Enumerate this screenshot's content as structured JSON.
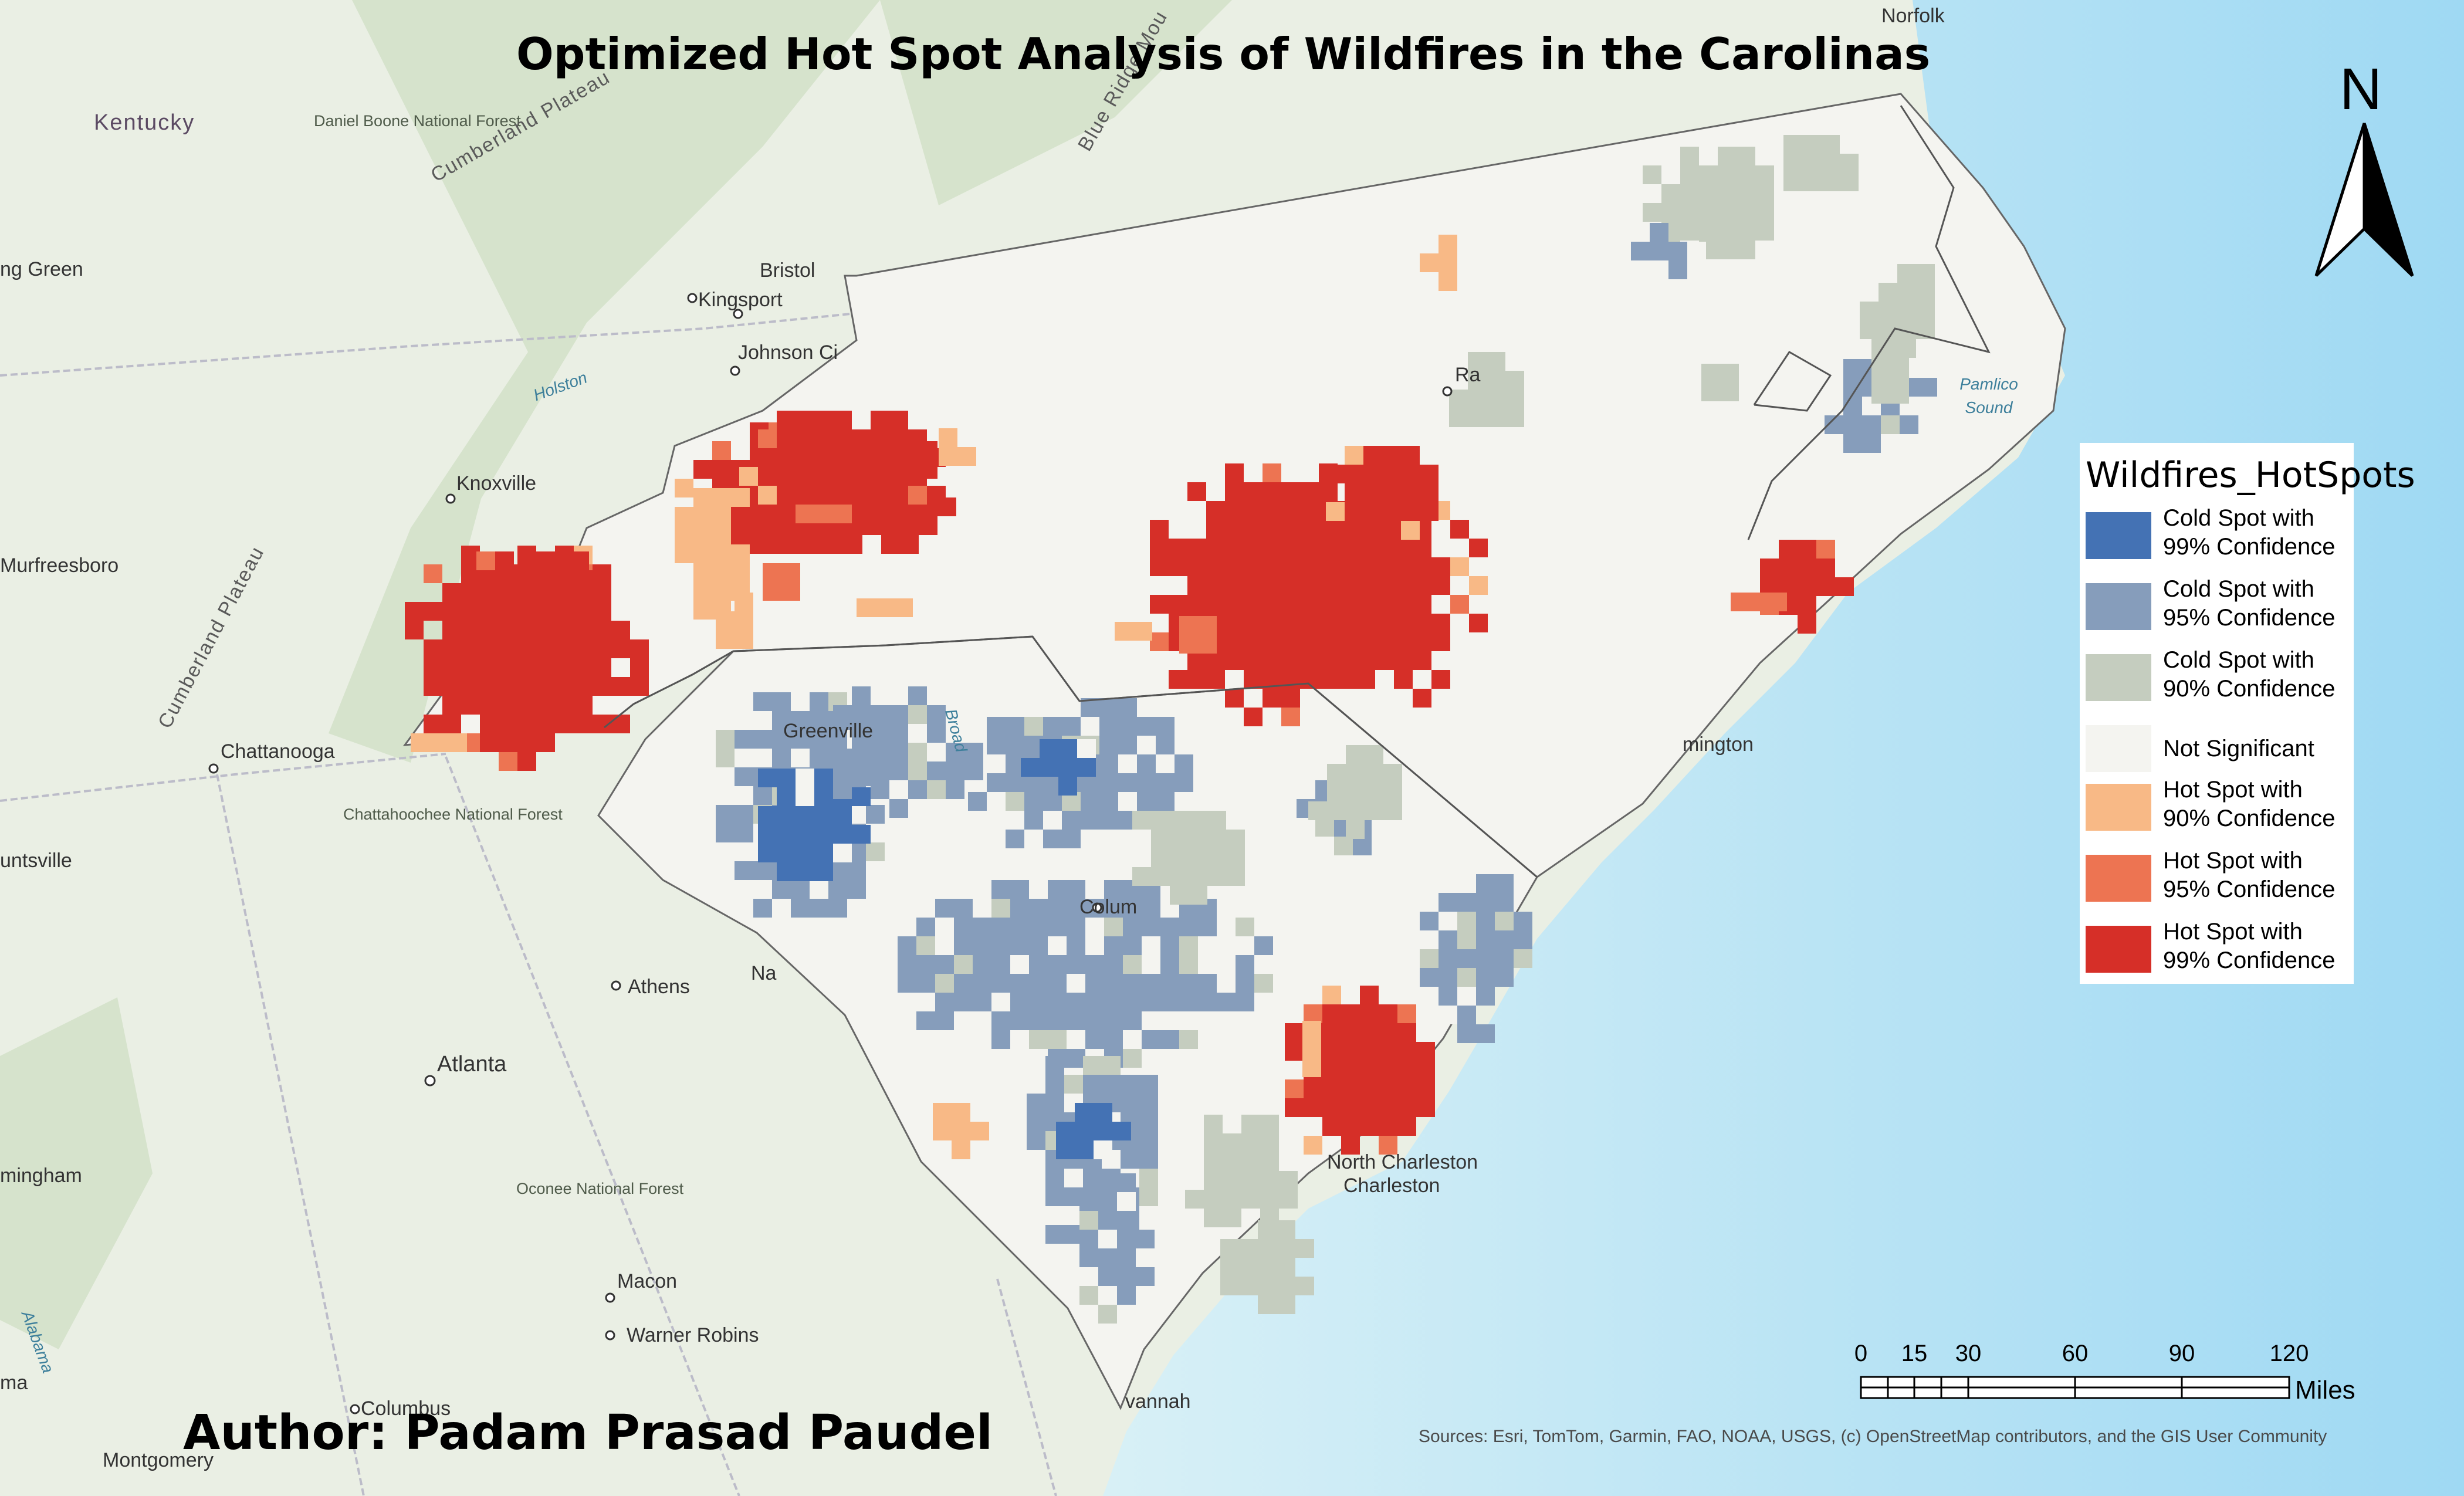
{
  "title": "Optimized Hot Spot Analysis of Wildfires in the Carolinas",
  "author": "Author: Padam Prasad Paudel",
  "sources": "Sources:  Esri, TomTom, Garmin, FAO, NOAA, USGS, (c) OpenStreetMap contributors, and the GIS User Community",
  "north_arrow": {
    "label": "N",
    "icon": "north-arrow-icon"
  },
  "legend": {
    "title": "Wildfires_HotSpots",
    "items": [
      {
        "label": "Cold Spot with 99% Confidence",
        "color": "#4472b4"
      },
      {
        "label": "Cold Spot with 95% Confidence",
        "color": "#869dbb"
      },
      {
        "label": "Cold Spot with 90% Confidence",
        "color": "#c5cdbf"
      },
      {
        "label": "Not Significant",
        "color": "#f4f4f0"
      },
      {
        "label": "Hot Spot with 90% Confidence",
        "color": "#f8b986"
      },
      {
        "label": "Hot Spot with 95% Confidence",
        "color": "#ed7452"
      },
      {
        "label": "Hot Spot with 99% Confidence",
        "color": "#d62f28"
      }
    ]
  },
  "scale_bar": {
    "ticks": [
      "0",
      "15",
      "30",
      "60",
      "90",
      "120"
    ],
    "unit": "Miles"
  },
  "places": [
    {
      "name": "Norfolk",
      "type": "city"
    },
    {
      "name": "Kentucky",
      "type": "region"
    },
    {
      "name": "Daniel Boone National Forest",
      "type": "forest"
    },
    {
      "name": "Cumberland Plateau",
      "type": "feature"
    },
    {
      "name": "Cumberland Plateau",
      "type": "feature"
    },
    {
      "name": "Blue Ridge Mou",
      "type": "feature"
    },
    {
      "name": "ng Green",
      "type": "city"
    },
    {
      "name": "Bristol",
      "type": "city"
    },
    {
      "name": "Kingsport",
      "type": "city"
    },
    {
      "name": "Johnson Ci",
      "type": "city"
    },
    {
      "name": "Holston",
      "type": "water"
    },
    {
      "name": "Knoxville",
      "type": "city"
    },
    {
      "name": "Murfreesboro",
      "type": "city"
    },
    {
      "name": "Chattanooga",
      "type": "city"
    },
    {
      "name": "Chattahoochee National Forest",
      "type": "forest"
    },
    {
      "name": "untsville",
      "type": "city"
    },
    {
      "name": "Athens",
      "type": "city"
    },
    {
      "name": "Atlanta",
      "type": "city"
    },
    {
      "name": "mingham",
      "type": "city"
    },
    {
      "name": "Oconee National Forest",
      "type": "forest"
    },
    {
      "name": "Macon",
      "type": "city"
    },
    {
      "name": "Warner Robins",
      "type": "city"
    },
    {
      "name": "Columbus",
      "type": "city"
    },
    {
      "name": "Montgomery",
      "type": "city"
    },
    {
      "name": "ma",
      "type": "city"
    },
    {
      "name": "Alabama",
      "type": "water"
    },
    {
      "name": "Greenville",
      "type": "city"
    },
    {
      "name": "Colum",
      "type": "city"
    },
    {
      "name": "Na",
      "type": "city"
    },
    {
      "name": "Ra",
      "type": "city"
    },
    {
      "name": "Broad",
      "type": "water"
    },
    {
      "name": "mington",
      "type": "city"
    },
    {
      "name": "North Charleston",
      "type": "city"
    },
    {
      "name": "Charleston",
      "type": "city"
    },
    {
      "name": "vannah",
      "type": "city"
    },
    {
      "name": "Pamlico Sound",
      "type": "water"
    }
  ]
}
